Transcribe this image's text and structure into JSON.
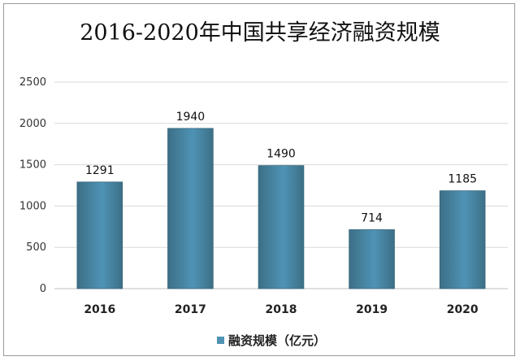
{
  "chart_data": {
    "type": "bar",
    "title": "2016-2020年中国共享经济融资规模",
    "categories": [
      "2016",
      "2017",
      "2018",
      "2019",
      "2020"
    ],
    "series": [
      {
        "name": "融资规模（亿元）",
        "values": [
          1291,
          1940,
          1490,
          714,
          1185
        ]
      }
    ],
    "data_labels": [
      "1291",
      "1940",
      "1490",
      "714",
      "1185"
    ],
    "y_ticks": [
      "0",
      "500",
      "1000",
      "1500",
      "2000",
      "2500"
    ],
    "ylim": [
      0,
      2500
    ],
    "grid": true,
    "legend_position": "bottom-left",
    "bar_color": "#4f93b5",
    "bar_color_dark": "#3c6f86"
  }
}
